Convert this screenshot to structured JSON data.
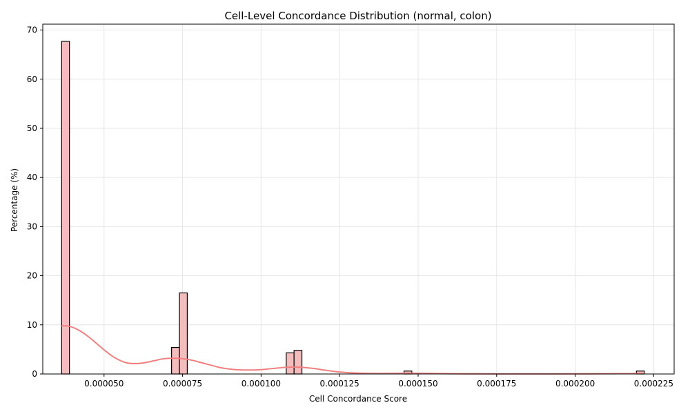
{
  "chart_data": {
    "type": "bar",
    "title": "Cell-Level Concordance Distribution (normal, colon)",
    "xlabel": "Cell Concordance Score",
    "ylabel": "Percentage (%)",
    "xlim": [
      3.05e-05,
      0.0002315
    ],
    "ylim": [
      0,
      71.2
    ],
    "x_ticks": [
      5e-05,
      7.5e-05,
      0.0001,
      0.000125,
      0.00015,
      0.000175,
      0.0002,
      0.000225
    ],
    "x_tick_labels": [
      "0.000050",
      "0.000075",
      "0.000100",
      "0.000125",
      "0.000150",
      "0.000175",
      "0.000200",
      "0.000225"
    ],
    "y_ticks": [
      0,
      10,
      20,
      30,
      40,
      50,
      60,
      70
    ],
    "y_tick_labels": [
      "0",
      "10",
      "20",
      "30",
      "40",
      "50",
      "60",
      "70"
    ],
    "grid": true,
    "bar_color": "#f4bcbc",
    "edge_color": "#000000",
    "kde_color": "#f08080",
    "bins": [
      {
        "x_start": 3.65e-05,
        "x_end": 3.9e-05,
        "percent": 67.7
      },
      {
        "x_start": 7.15e-05,
        "x_end": 7.4e-05,
        "percent": 5.4
      },
      {
        "x_start": 7.4e-05,
        "x_end": 7.65e-05,
        "percent": 16.5
      },
      {
        "x_start": 0.000108,
        "x_end": 0.0001105,
        "percent": 4.3
      },
      {
        "x_start": 0.0001105,
        "x_end": 0.000113,
        "percent": 4.8
      },
      {
        "x_start": 0.0001455,
        "x_end": 0.000148,
        "percent": 0.6
      },
      {
        "x_start": 0.0002195,
        "x_end": 0.000222,
        "percent": 0.6
      }
    ],
    "kde": {
      "x": [
        3.65e-05,
        3.9e-05,
        4.2e-05,
        4.5e-05,
        4.8e-05,
        5.1e-05,
        5.4e-05,
        5.7e-05,
        6e-05,
        6.3e-05,
        6.6e-05,
        6.9e-05,
        7.2e-05,
        7.5e-05,
        7.8e-05,
        8.1e-05,
        8.4e-05,
        8.7e-05,
        9e-05,
        9.3e-05,
        9.6e-05,
        9.9e-05,
        0.000102,
        0.000105,
        0.000108,
        0.000111,
        0.000114,
        0.000117,
        0.00012,
        0.000123,
        0.000126,
        0.000129,
        0.000132,
        0.000135,
        0.000138,
        0.000141,
        0.000144,
        0.000147,
        0.00015,
        0.000155,
        0.00016,
        0.00017,
        0.00018,
        0.00019,
        0.0002,
        0.00021,
        0.000215,
        0.00022,
        0.000222
      ],
      "y": [
        9.8,
        9.7,
        8.9,
        7.6,
        6.0,
        4.4,
        3.1,
        2.3,
        2.1,
        2.3,
        2.7,
        3.1,
        3.2,
        3.1,
        2.8,
        2.3,
        1.8,
        1.3,
        1.0,
        0.85,
        0.8,
        0.85,
        1.0,
        1.2,
        1.35,
        1.4,
        1.3,
        1.1,
        0.8,
        0.55,
        0.35,
        0.22,
        0.15,
        0.12,
        0.11,
        0.12,
        0.14,
        0.15,
        0.14,
        0.1,
        0.06,
        0.03,
        0.02,
        0.02,
        0.03,
        0.05,
        0.07,
        0.08,
        0.08
      ]
    }
  }
}
